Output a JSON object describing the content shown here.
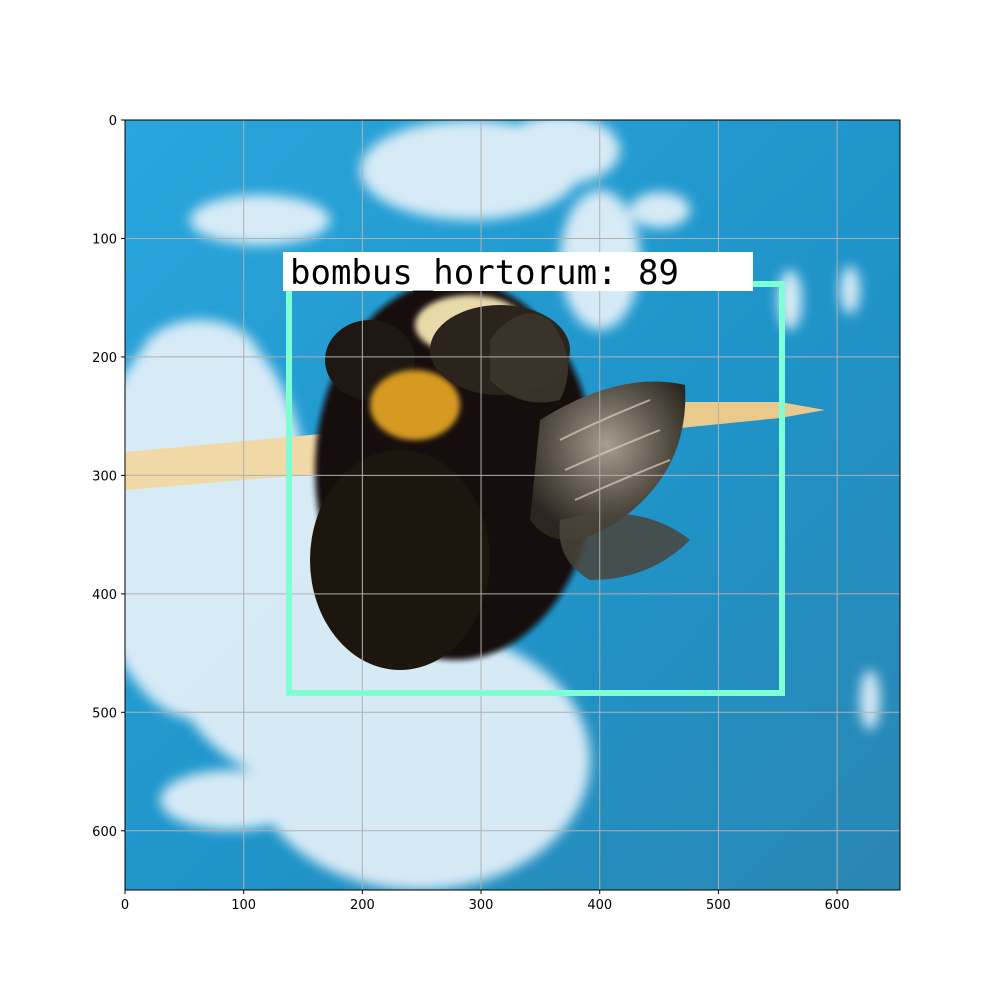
{
  "figure": {
    "x_ticks": [
      0,
      100,
      200,
      300,
      400,
      500,
      600
    ],
    "y_ticks": [
      0,
      100,
      200,
      300,
      400,
      500,
      600
    ],
    "x_range": [
      0,
      653
    ],
    "y_range": [
      0,
      650
    ],
    "grid": true
  },
  "detection": {
    "label": "bombus_hortorum: 89",
    "box_color": "#7fffd4",
    "label_bg": "#ffffff"
  },
  "photo": {
    "sky_color": "#2aa0d6",
    "cloud_color": "#e8f3fa",
    "stick_color": "#f0d9a6",
    "bee_body_color": "#15110c",
    "bee_band_color": "#e0a020"
  }
}
